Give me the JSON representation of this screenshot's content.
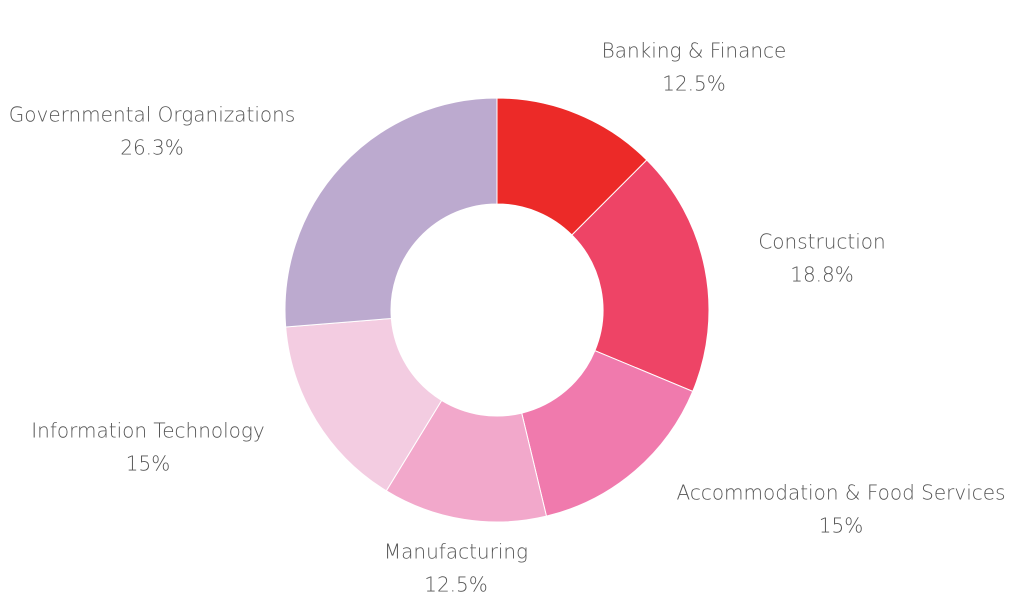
{
  "chart_data": {
    "type": "pie",
    "variant": "donut",
    "title": "",
    "legend": "none",
    "slices": [
      {
        "name": "Banking & Finance",
        "value": 12.5,
        "label": "12.5%",
        "color": "#ec2a28",
        "label_side": "top-right"
      },
      {
        "name": "Construction",
        "value": 18.8,
        "label": "18.8%",
        "color": "#ee4466",
        "label_side": "right"
      },
      {
        "name": "Accommodation & Food Services",
        "value": 15,
        "label": "15%",
        "color": "#f07aad",
        "label_side": "bottom-right"
      },
      {
        "name": "Manufacturing",
        "value": 12.5,
        "label": "12.5%",
        "color": "#f2a8cb",
        "label_side": "bottom"
      },
      {
        "name": "Information Technology",
        "value": 15,
        "label": "15%",
        "color": "#f3cce1",
        "label_side": "left"
      },
      {
        "name": "Governmental Organizations",
        "value": 26.3,
        "label": "26.3%",
        "color": "#bcaacf",
        "label_side": "top-left"
      }
    ]
  }
}
